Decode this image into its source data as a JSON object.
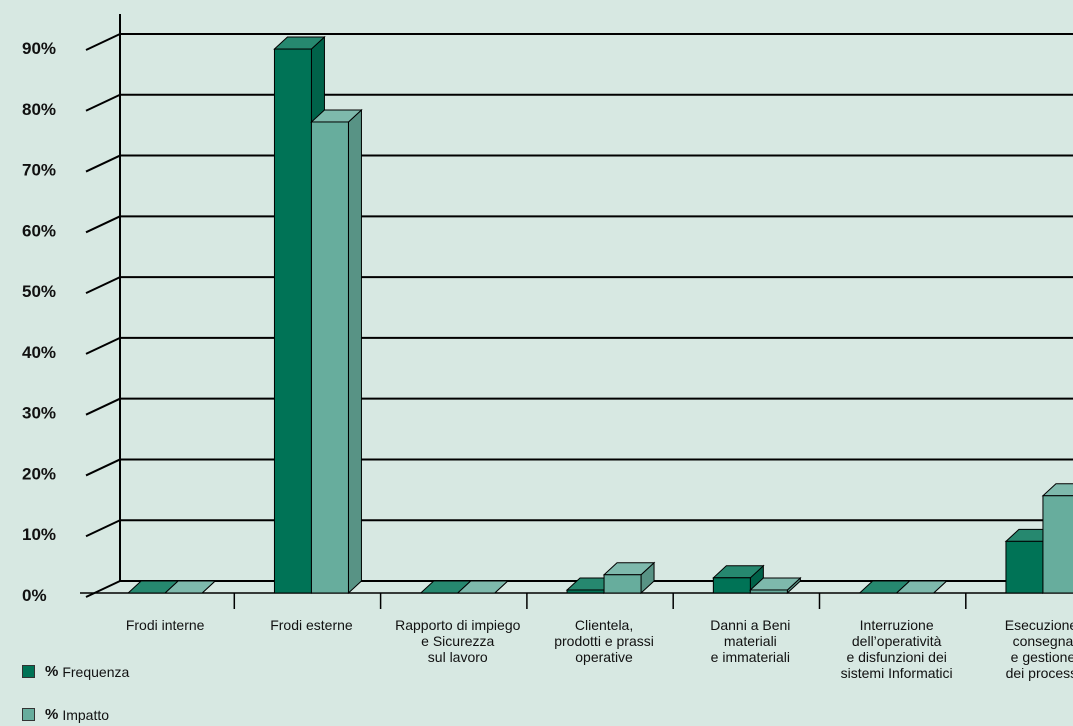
{
  "chart_data": {
    "type": "bar",
    "categories": [
      [
        "Frodi interne"
      ],
      [
        "Frodi esterne"
      ],
      [
        "Rapporto di impiego",
        "e Sicurezza",
        "sul lavoro"
      ],
      [
        "Clientela,",
        "prodotti e prassi",
        "operative"
      ],
      [
        "Danni a Beni",
        "materiali",
        "e immateriali"
      ],
      [
        "Interruzione",
        "dell’operatività",
        "e disfunzioni dei",
        "sistemi Informatici"
      ],
      [
        "Esecuzione,",
        "consegna",
        "e gestione",
        "dei processi"
      ]
    ],
    "series": [
      {
        "name": "Frequenza",
        "values": [
          0,
          89.5,
          0,
          0.5,
          2.5,
          0,
          8.5
        ],
        "color": "#007356"
      },
      {
        "name": "Impatto",
        "values": [
          0,
          77.5,
          0,
          3.0,
          0.5,
          0,
          16.0
        ],
        "color": "#67ad9d"
      }
    ],
    "ylim": [
      0,
      90
    ],
    "yticks": [
      "0%",
      "10%",
      "20%",
      "30%",
      "40%",
      "50%",
      "60%",
      "70%",
      "80%",
      "90%"
    ],
    "grid": true,
    "legend_position": "bottom-left"
  },
  "legend": {
    "pct_symbol": "%",
    "items": [
      "Frequenza",
      "Impatto"
    ]
  }
}
